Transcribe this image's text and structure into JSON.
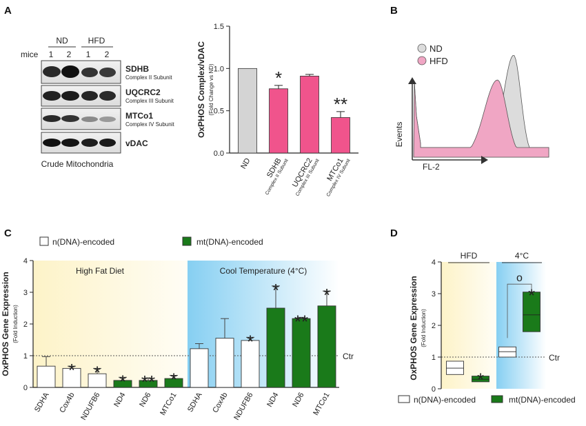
{
  "panels": {
    "A": "A",
    "B": "B",
    "C": "C",
    "D": "D"
  },
  "blot": {
    "group_nd": "ND",
    "group_hfd": "HFD",
    "mice_label": "mice",
    "lane_labels": [
      "1",
      "2",
      "1",
      "2"
    ],
    "bands": [
      {
        "name": "SDHB",
        "subunit": "Complex II Subunit"
      },
      {
        "name": "UQCRC2",
        "subunit": "Complex III Subunit"
      },
      {
        "name": "MTCo1",
        "subunit": "Complex IV Subunit"
      },
      {
        "name": "vDAC",
        "subunit": ""
      }
    ],
    "caption": "Crude Mitochondria"
  },
  "colors": {
    "pink": "#f0548c",
    "gray": "#d4d4d4",
    "green": "#1a7a1a",
    "pink_fill": "#f0a6c4",
    "yellow_bg": "#fdf7d8",
    "blue_bg": "#8fd4f3"
  },
  "chart_data": [
    {
      "id": "A",
      "type": "bar",
      "title": "",
      "ylabel": "OxPHOS Complex/vDAC",
      "ylabel_sub": "(Fold Change vs ND)",
      "ylim": [
        0,
        1.5
      ],
      "yticks": [
        "0.0",
        "0.5",
        "1.0",
        "1.5"
      ],
      "categories": [
        {
          "label": "ND",
          "sub": ""
        },
        {
          "label": "SDHB",
          "sub": "Complex II Subunit"
        },
        {
          "label": "UQCRC2",
          "sub": "Complex III Subunit"
        },
        {
          "label": "MTCo1",
          "sub": "Complex IV Subunit"
        }
      ],
      "values": [
        1.0,
        0.76,
        0.91,
        0.42
      ],
      "errors": [
        0,
        0.04,
        0.02,
        0.07
      ],
      "significance": [
        "",
        "*",
        "",
        "**"
      ]
    },
    {
      "id": "B",
      "type": "line",
      "title": "",
      "xlabel": "FL-2",
      "ylabel": "Events",
      "legend": [
        "ND",
        "HFD"
      ],
      "legend_placement": "top-left",
      "series": [
        {
          "name": "ND",
          "fill": "gray",
          "mode_fl2": 0.74
        },
        {
          "name": "HFD",
          "fill": "pink",
          "mode_fl2": 0.62
        }
      ]
    },
    {
      "id": "C",
      "type": "bar",
      "ylabel": "OxPHOS Gene Expression",
      "ylabel_sub": "(Fold Induction)",
      "ylim": [
        0,
        4
      ],
      "yticks": [
        "0",
        "1",
        "2",
        "3",
        "4"
      ],
      "reference_label": "Ctr",
      "reference_value": 1,
      "legend": [
        "n(DNA)-encoded",
        "mt(DNA)-encoded"
      ],
      "region_labels": [
        "High Fat Diet",
        "Cool Temperature (4°C)"
      ],
      "categories": [
        "SDHA",
        "Cox4b",
        "NDUFB6",
        "ND4",
        "ND6",
        "MTCo1",
        "SDHA",
        "Cox4b",
        "NDUFB6",
        "ND4",
        "ND6",
        "MTCo1"
      ],
      "values": [
        0.67,
        0.6,
        0.43,
        0.22,
        0.22,
        0.28,
        1.22,
        1.55,
        1.48,
        2.5,
        2.17,
        2.57
      ],
      "errors": [
        0.3,
        0.07,
        0.17,
        0.1,
        0.08,
        0.1,
        0.16,
        0.62,
        0.1,
        0.7,
        0.04,
        0.47
      ],
      "encoding": [
        "n",
        "n",
        "n",
        "mt",
        "mt",
        "mt",
        "n",
        "n",
        "n",
        "mt",
        "mt",
        "mt"
      ],
      "significance": [
        "",
        "*",
        "*",
        "*",
        "**",
        "*",
        "",
        "",
        "*",
        "*",
        "**",
        "*"
      ]
    },
    {
      "id": "D",
      "type": "bar",
      "ylabel": "OxPHOS Gene Expression",
      "ylabel_sub": "(Fold Induction)",
      "ylim": [
        0,
        4
      ],
      "yticks": [
        "0",
        "1",
        "2",
        "3",
        "4"
      ],
      "reference_label": "Ctr",
      "reference_value": 1,
      "group_labels": [
        "HFD",
        "4°C"
      ],
      "legend": [
        "n(DNA)-encoded",
        "mt(DNA)-encoded"
      ],
      "boxes": [
        {
          "group": "HFD",
          "encoding": "n",
          "min": 0.45,
          "median": 0.65,
          "max": 0.87
        },
        {
          "group": "HFD",
          "encoding": "mt",
          "min": 0.22,
          "median": 0.3,
          "max": 0.4
        },
        {
          "group": "4°C",
          "encoding": "n",
          "min": 1.0,
          "median": 1.17,
          "max": 1.32
        },
        {
          "group": "4°C",
          "encoding": "mt",
          "min": 1.8,
          "median": 2.33,
          "max": 3.05
        }
      ],
      "significance": [
        "",
        "*",
        "",
        "*"
      ],
      "bracket_symbol": "o"
    }
  ]
}
